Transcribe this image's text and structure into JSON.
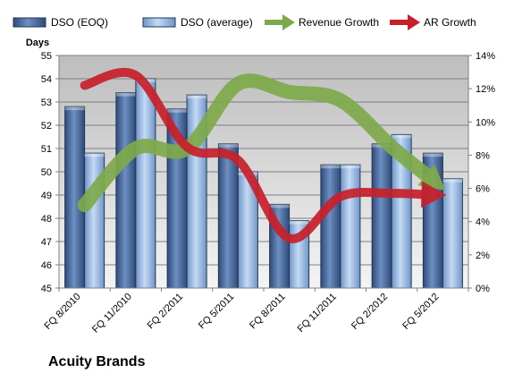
{
  "company_name": "Acuity Brands",
  "colors": {
    "dso_eoq": "#4f6fa3",
    "dso_average": "#93b6e0",
    "revenue_growth": "#7ea94a",
    "ar_growth": "#c8202a",
    "plot_background": "#c7c7c7"
  },
  "chart_data": {
    "type": "bar",
    "title": "",
    "categories": [
      "FQ 8/2010",
      "FQ 11/2010",
      "FQ 2/2011",
      "FQ 5/2011",
      "FQ 8/2011",
      "FQ 11/2011",
      "FQ 2/2012",
      "FQ 5/2012"
    ],
    "ylabel": "Days",
    "ylim": [
      45,
      55
    ],
    "yticks": [
      45,
      46,
      47,
      48,
      49,
      50,
      51,
      52,
      53,
      54,
      55
    ],
    "y2lim": [
      0,
      14
    ],
    "y2ticks": [
      "0%",
      "2%",
      "4%",
      "6%",
      "8%",
      "10%",
      "12%",
      "14%"
    ],
    "grid": true,
    "legend_position": "top",
    "series": [
      {
        "name": "DSO (EOQ)",
        "kind": "bar",
        "axis": "left",
        "values": [
          52.8,
          53.4,
          52.7,
          51.2,
          48.6,
          50.3,
          51.2,
          50.8
        ]
      },
      {
        "name": "DSO (average)",
        "kind": "bar",
        "axis": "left",
        "values": [
          50.8,
          54.0,
          53.3,
          50.0,
          47.9,
          50.3,
          51.6,
          49.7
        ]
      },
      {
        "name": "Revenue Growth",
        "kind": "arrow",
        "axis": "right",
        "values": [
          5.0,
          8.4,
          8.4,
          12.3,
          11.8,
          11.3,
          8.5,
          6.0
        ]
      },
      {
        "name": "AR Growth",
        "kind": "arrow",
        "axis": "right",
        "values": [
          12.2,
          12.8,
          8.5,
          7.7,
          3.0,
          5.5,
          5.7,
          5.6
        ]
      }
    ]
  }
}
